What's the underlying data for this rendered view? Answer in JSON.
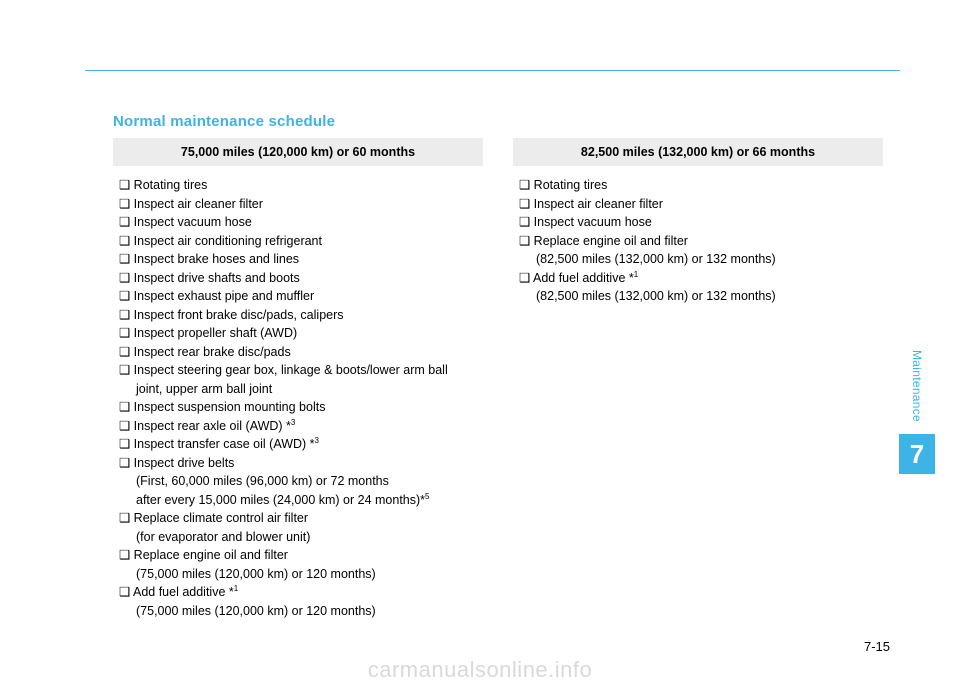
{
  "colors": {
    "accent": "#3eb3e6",
    "header_bg": "#ececec",
    "text": "#000000",
    "watermark": "#d9d9d9",
    "background": "#ffffff"
  },
  "typography": {
    "title_fontsize": 15,
    "body_fontsize": 12.5,
    "line_height": 18.5,
    "side_num_fontsize": 26,
    "watermark_fontsize": 22
  },
  "section_title": "Normal maintenance schedule",
  "columns": [
    {
      "header": "75,000 miles (120,000 km) or 60 months",
      "items": [
        {
          "text": "❑ Rotating tires"
        },
        {
          "text": "❑ Inspect air cleaner filter"
        },
        {
          "text": "❑ Inspect vacuum hose"
        },
        {
          "text": "❑ Inspect air conditioning refrigerant"
        },
        {
          "text": "❑ Inspect brake hoses and lines"
        },
        {
          "text": "❑ Inspect drive shafts and boots"
        },
        {
          "text": "❑ Inspect exhaust pipe and muffler"
        },
        {
          "text": "❑ Inspect front brake disc/pads, calipers"
        },
        {
          "text": "❑ Inspect propeller shaft (AWD)"
        },
        {
          "text": "❑ Inspect rear brake disc/pads"
        },
        {
          "text": "❑ Inspect steering gear box, linkage & boots/lower arm ball"
        },
        {
          "text": "joint, upper arm ball joint",
          "sub": true
        },
        {
          "text": "❑ Inspect suspension mounting bolts"
        },
        {
          "text": "❑ Inspect rear axle oil (AWD) *",
          "sup": "3"
        },
        {
          "text": "❑ Inspect transfer case oil (AWD) *",
          "sup": "3"
        },
        {
          "text": "❑ Inspect drive belts"
        },
        {
          "text": "(First, 60,000 miles (96,000 km) or 72 months",
          "sub": true
        },
        {
          "text": " after every 15,000 miles (24,000 km) or 24 months)*",
          "sub": true,
          "sup": "5"
        },
        {
          "text": "❑ Replace climate control air filter"
        },
        {
          "text": "(for evaporator and blower unit)",
          "sub": true
        },
        {
          "text": "❑ Replace engine oil and filter"
        },
        {
          "text": "(75,000 miles (120,000 km) or 120 months)",
          "sub": true
        },
        {
          "text": "❑ Add fuel additive *",
          "sup": "1"
        },
        {
          "text": "(75,000 miles (120,000 km) or 120 months)",
          "sub": true
        }
      ]
    },
    {
      "header": "82,500 miles (132,000 km) or 66 months",
      "items": [
        {
          "text": "❑ Rotating tires"
        },
        {
          "text": "❑ Inspect air cleaner filter"
        },
        {
          "text": "❑ Inspect vacuum hose"
        },
        {
          "text": "❑ Replace engine oil and filter"
        },
        {
          "text": "(82,500 miles (132,000 km) or 132 months)",
          "sub": true
        },
        {
          "text": "❑ Add fuel additive *",
          "sup": "1"
        },
        {
          "text": "(82,500 miles (132,000 km) or 132 months)",
          "sub": true
        }
      ]
    }
  ],
  "side": {
    "label": "Maintenance",
    "chapter": "7"
  },
  "page_number": "7-15",
  "watermark": "carmanualsonline.info"
}
